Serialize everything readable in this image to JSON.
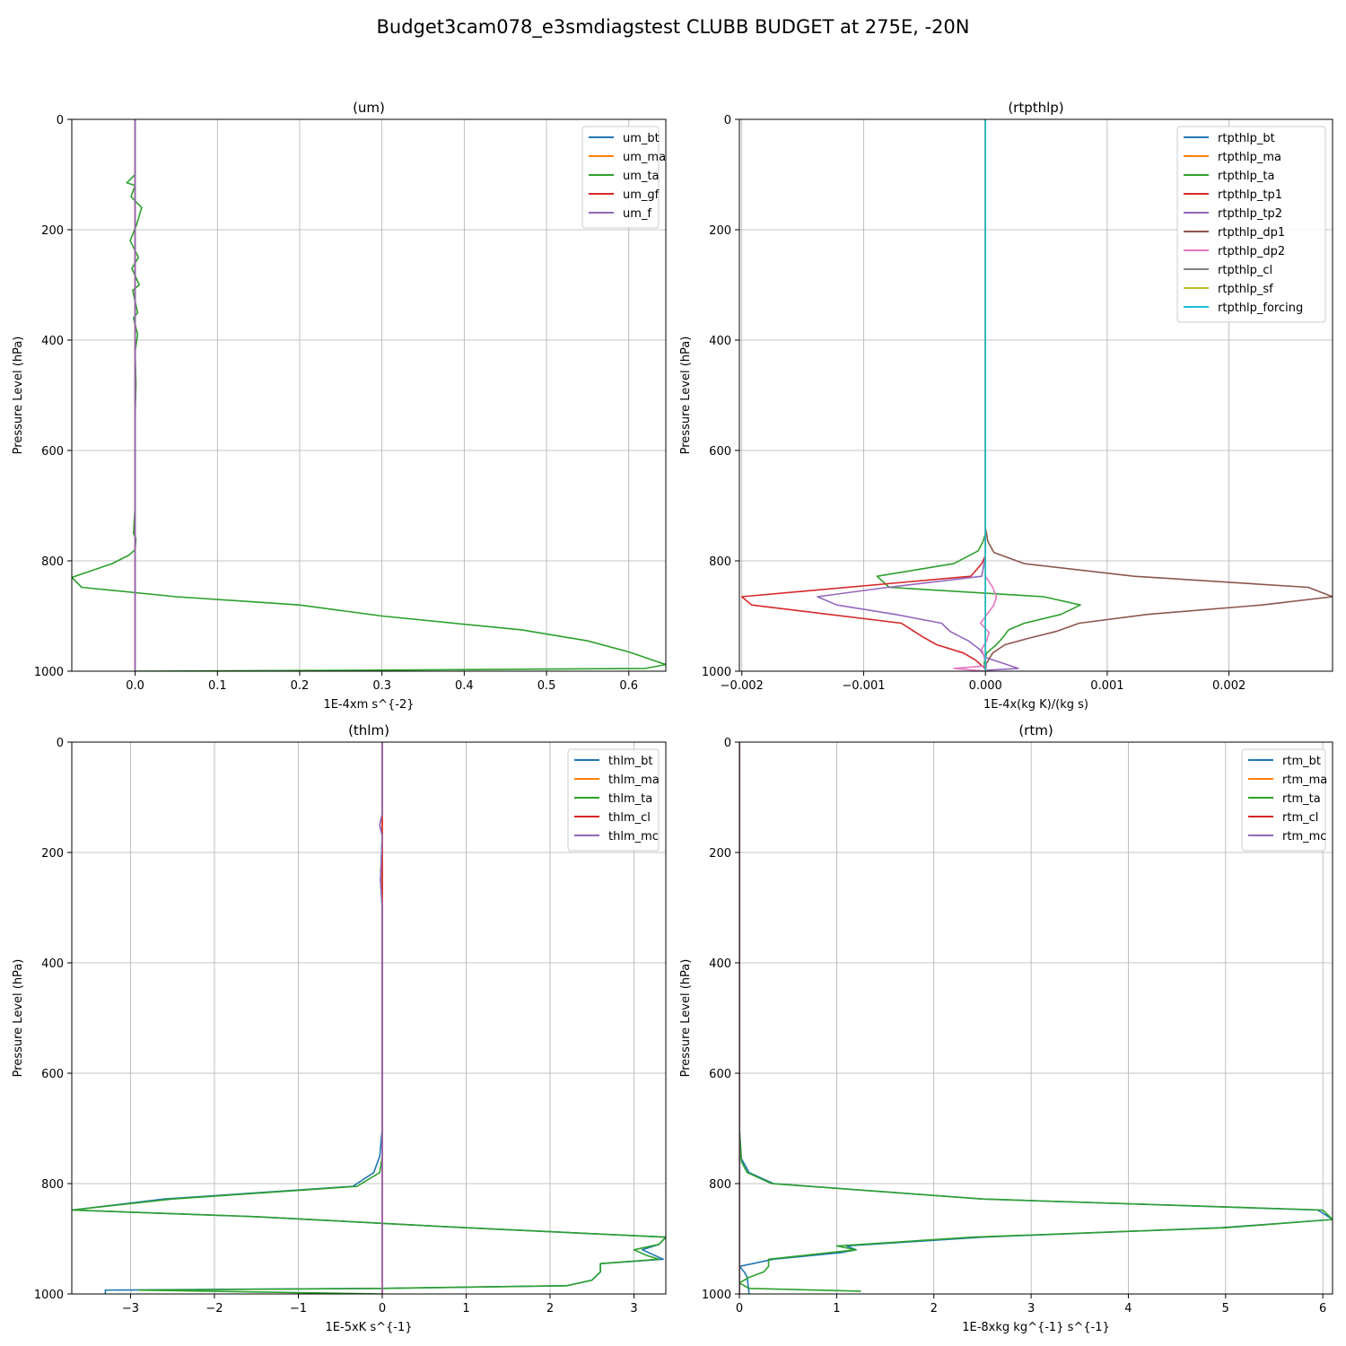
{
  "figure": {
    "title": "Budget3cam078_e3smdiagstest CLUBB BUDGET at 275E, -20N"
  },
  "chart_data": [
    {
      "type": "line",
      "title": "(um)",
      "xlabel": "1E-4xm s^{-2}",
      "ylabel": "Pressure Level (hPa)",
      "xlim": [
        -0.077,
        0.645
      ],
      "ylim": [
        1000,
        0
      ],
      "xticks": [
        0.0,
        0.1,
        0.2,
        0.3,
        0.4,
        0.5,
        0.6
      ],
      "xtick_labels": [
        "0.0",
        "0.1",
        "0.2",
        "0.3",
        "0.4",
        "0.5",
        "0.6"
      ],
      "yticks": [
        0,
        200,
        400,
        600,
        800,
        1000
      ],
      "ytick_labels": [
        "0",
        "200",
        "400",
        "600",
        "800",
        "1000"
      ],
      "grid": true,
      "legend_position": "top-right",
      "series": [
        {
          "name": "um_bt",
          "color": "#1f77b4",
          "x": [
            0,
            0,
            0
          ],
          "y": [
            0,
            500,
            1000
          ]
        },
        {
          "name": "um_ma",
          "color": "#ff7f0e",
          "x": [
            0,
            0,
            0
          ],
          "y": [
            0,
            500,
            1000
          ]
        },
        {
          "name": "um_ta",
          "color": "#2ca02c",
          "x": [
            0,
            0,
            0,
            -0.01,
            0,
            -0.005,
            0.008,
            0.002,
            -0.006,
            0.004,
            -0.004,
            0.005,
            -0.003,
            0,
            0.003,
            -0.002,
            0.003,
            0,
            0.001,
            0,
            0,
            0,
            0,
            -0.002,
            0.001,
            0,
            -0.008,
            -0.028,
            -0.077,
            -0.065,
            0.05,
            0.2,
            0.3,
            0.4,
            0.47,
            0.55,
            0.6,
            0.645,
            0.62,
            0.3,
            0
          ],
          "y": [
            0,
            50,
            100,
            115,
            120,
            140,
            160,
            190,
            220,
            250,
            270,
            300,
            310,
            330,
            350,
            360,
            390,
            420,
            480,
            540,
            600,
            640,
            700,
            750,
            760,
            780,
            790,
            805,
            830,
            848,
            865,
            880,
            900,
            915,
            925,
            945,
            965,
            988,
            995,
            998,
            1000
          ]
        },
        {
          "name": "um_gf",
          "color": "#d62728",
          "x": [
            0,
            0,
            0
          ],
          "y": [
            0,
            500,
            1000
          ]
        },
        {
          "name": "um_f",
          "color": "#9467bd",
          "x": [
            0,
            0,
            0
          ],
          "y": [
            0,
            500,
            1000
          ]
        }
      ]
    },
    {
      "type": "line",
      "title": "(rtpthlp)",
      "xlabel": "1E-4x(kg K)/(kg s)",
      "ylabel": "Pressure Level (hPa)",
      "xlim": [
        -0.00202,
        0.00285
      ],
      "ylim": [
        1000,
        0
      ],
      "xticks": [
        -0.002,
        -0.001,
        0.0,
        0.001,
        0.002
      ],
      "xtick_labels": [
        "−0.002",
        "−0.001",
        "0.000",
        "0.001",
        "0.002"
      ],
      "yticks": [
        0,
        200,
        400,
        600,
        800,
        1000
      ],
      "ytick_labels": [
        "0",
        "200",
        "400",
        "600",
        "800",
        "1000"
      ],
      "grid": true,
      "legend_position": "top-right",
      "series": [
        {
          "name": "rtpthlp_bt",
          "color": "#1f77b4",
          "x": [
            0,
            0,
            0
          ],
          "y": [
            0,
            500,
            1000
          ]
        },
        {
          "name": "rtpthlp_ma",
          "color": "#ff7f0e",
          "x": [
            0,
            0,
            0
          ],
          "y": [
            0,
            500,
            1000
          ]
        },
        {
          "name": "rtpthlp_ta",
          "color": "#2ca02c",
          "x": [
            0,
            0,
            0,
            -2e-05,
            -6e-05,
            -0.00026,
            -0.00089,
            -0.00079,
            0.00048,
            0.00078,
            0.00062,
            0.00032,
            0.00019,
            0.00015,
            9e-05,
            1e-05,
            -1e-05,
            0
          ],
          "y": [
            0,
            700,
            750,
            765,
            782,
            805,
            828,
            848,
            865,
            880,
            897,
            913,
            925,
            937,
            952,
            967,
            985,
            1000
          ]
        },
        {
          "name": "rtpthlp_tp1",
          "color": "#d62728",
          "x": [
            0,
            0,
            -3e-05,
            -0.00012,
            -0.002,
            -0.00192,
            -0.00069,
            -0.00052,
            -0.0004,
            -0.00018,
            -8e-05,
            -3e-05,
            0,
            0
          ],
          "y": [
            0,
            790,
            805,
            828,
            865,
            880,
            913,
            937,
            952,
            967,
            980,
            990,
            995,
            1000
          ]
        },
        {
          "name": "rtpthlp_tp2",
          "color": "#9467bd",
          "x": [
            0,
            0,
            -3e-05,
            -0.0008,
            -0.00138,
            -0.00122,
            -0.00074,
            -0.00036,
            -0.00029,
            -0.00014,
            -5e-05,
            0,
            0.00027,
            2e-05,
            0
          ],
          "y": [
            0,
            790,
            828,
            848,
            865,
            880,
            897,
            913,
            928,
            945,
            960,
            975,
            995,
            998,
            1000
          ]
        },
        {
          "name": "rtpthlp_dp1",
          "color": "#8c564b",
          "x": [
            0,
            0,
            2e-05,
            7e-05,
            0.00032,
            0.00122,
            0.00265,
            0.00285,
            0.00227,
            0.00133,
            0.00077,
            0.00058,
            0.00036,
            0.00016,
            6e-05,
            1e-05,
            0
          ],
          "y": [
            0,
            740,
            765,
            785,
            805,
            828,
            848,
            865,
            880,
            897,
            913,
            928,
            940,
            952,
            967,
            985,
            1000
          ]
        },
        {
          "name": "rtpthlp_dp2",
          "color": "#e377c2",
          "x": [
            0,
            0,
            0,
            6e-05,
            9e-05,
            7e-05,
            2e-05,
            -4e-05,
            3e-05,
            1e-05,
            -3e-05,
            1e-05,
            -0.00026,
            0
          ],
          "y": [
            0,
            790,
            828,
            848,
            865,
            880,
            895,
            913,
            930,
            945,
            960,
            990,
            995,
            1000
          ]
        },
        {
          "name": "rtpthlp_cl",
          "color": "#7f7f7f",
          "x": [
            0,
            0,
            0
          ],
          "y": [
            0,
            500,
            1000
          ]
        },
        {
          "name": "rtpthlp_sf",
          "color": "#bcbd22",
          "x": [
            0,
            0,
            0
          ],
          "y": [
            0,
            500,
            1000
          ]
        },
        {
          "name": "rtpthlp_forcing",
          "color": "#17becf",
          "x": [
            0,
            0,
            0
          ],
          "y": [
            0,
            500,
            1000
          ]
        }
      ]
    },
    {
      "type": "line",
      "title": "(thlm)",
      "xlabel": "1E-5xK s^{-1}",
      "ylabel": "Pressure Level (hPa)",
      "xlim": [
        -3.7,
        3.38
      ],
      "ylim": [
        1000,
        0
      ],
      "xticks": [
        -3,
        -2,
        -1,
        0,
        1,
        2,
        3
      ],
      "xtick_labels": [
        "−3",
        "−2",
        "−1",
        "0",
        "1",
        "2",
        "3"
      ],
      "yticks": [
        0,
        200,
        400,
        600,
        800,
        1000
      ],
      "ytick_labels": [
        "0",
        "200",
        "400",
        "600",
        "800",
        "1000"
      ],
      "grid": true,
      "legend_position": "top-right",
      "series": [
        {
          "name": "thlm_bt",
          "color": "#1f77b4",
          "x": [
            0,
            0,
            0,
            -0.03,
            0,
            -0.02,
            0,
            0,
            0,
            0,
            0,
            -0.03,
            -0.1,
            -0.35,
            -2.6,
            -3.7,
            -1.5,
            0,
            1,
            3.38,
            3.3,
            3.1,
            3.35,
            2.6,
            2.6,
            2.5,
            2.2,
            0,
            -3.3,
            -3.3
          ],
          "y": [
            0,
            100,
            130,
            150,
            170,
            250,
            300,
            400,
            500,
            600,
            700,
            750,
            780,
            805,
            828,
            848,
            860,
            872,
            880,
            897,
            910,
            920,
            937,
            945,
            960,
            975,
            985,
            990,
            993,
            1000
          ]
        },
        {
          "name": "thlm_ma",
          "color": "#ff7f0e",
          "x": [
            0,
            0,
            0
          ],
          "y": [
            0,
            500,
            1000
          ]
        },
        {
          "name": "thlm_ta",
          "color": "#2ca02c",
          "x": [
            0,
            0,
            0,
            -0.03,
            0,
            -0.02,
            0,
            0,
            0,
            0,
            0,
            0,
            -0.03,
            -0.3,
            -2.5,
            -3.7,
            -1.5,
            0,
            1,
            3.38,
            3.3,
            3.0,
            3.15,
            3.3,
            2.6,
            2.6,
            2.5,
            2.2,
            0,
            -2.9,
            0
          ],
          "y": [
            0,
            100,
            130,
            150,
            170,
            250,
            300,
            400,
            500,
            600,
            700,
            750,
            780,
            805,
            828,
            848,
            860,
            872,
            880,
            897,
            910,
            920,
            930,
            937,
            945,
            960,
            975,
            985,
            990,
            993,
            1000
          ]
        },
        {
          "name": "thlm_cl",
          "color": "#d62728",
          "x": [
            0,
            0,
            0
          ],
          "y": [
            0,
            500,
            1000
          ]
        },
        {
          "name": "thlm_mc",
          "color": "#9467bd",
          "x": [
            0,
            0,
            0,
            -0.03,
            0,
            -0.02,
            0,
            0,
            0,
            0
          ],
          "y": [
            0,
            100,
            130,
            150,
            170,
            250,
            300,
            500,
            750,
            1000
          ]
        }
      ]
    },
    {
      "type": "line",
      "title": "(rtm)",
      "xlabel": "1E-8xkg kg^{-1} s^{-1}",
      "ylabel": "Pressure Level (hPa)",
      "xlim": [
        0,
        6.1
      ],
      "ylim": [
        1000,
        0
      ],
      "xticks": [
        0,
        1,
        2,
        3,
        4,
        5,
        6
      ],
      "xtick_labels": [
        "0",
        "1",
        "2",
        "3",
        "4",
        "5",
        "6"
      ],
      "yticks": [
        0,
        200,
        400,
        600,
        800,
        1000
      ],
      "ytick_labels": [
        "0",
        "200",
        "400",
        "600",
        "800",
        "1000"
      ],
      "grid": true,
      "legend_position": "top-right",
      "series": [
        {
          "name": "rtm_bt",
          "color": "#1f77b4",
          "x": [
            0,
            0,
            0,
            0.02,
            0.1,
            0.35,
            2.5,
            5.95,
            6.1,
            4.95,
            2.5,
            1.1,
            1.2,
            1.05,
            0.35,
            0,
            0.05,
            0.08,
            0.1
          ],
          "y": [
            0,
            400,
            700,
            755,
            780,
            800,
            828,
            848,
            865,
            880,
            897,
            913,
            920,
            925,
            937,
            950,
            960,
            970,
            1000
          ]
        },
        {
          "name": "rtm_ma",
          "color": "#ff7f0e",
          "x": [
            0,
            0,
            0
          ],
          "y": [
            0,
            500,
            1000
          ]
        },
        {
          "name": "rtm_ta",
          "color": "#2ca02c",
          "x": [
            0,
            0,
            0,
            0.02,
            0.08,
            0.33,
            2.5,
            6.0,
            6.1,
            5.0,
            2.4,
            1.0,
            1.2,
            0.3,
            0.3,
            0.25,
            0.1,
            0,
            0.1,
            1.25
          ],
          "y": [
            0,
            400,
            700,
            760,
            780,
            800,
            828,
            848,
            865,
            880,
            897,
            913,
            920,
            937,
            950,
            960,
            970,
            980,
            990,
            995
          ]
        },
        {
          "name": "rtm_cl",
          "color": "#d62728",
          "x": [
            0,
            0,
            0
          ],
          "y": [
            0,
            500,
            1000
          ]
        },
        {
          "name": "rtm_mc",
          "color": "#9467bd",
          "x": [
            0,
            0,
            0
          ],
          "y": [
            0,
            500,
            1000
          ]
        }
      ]
    }
  ]
}
